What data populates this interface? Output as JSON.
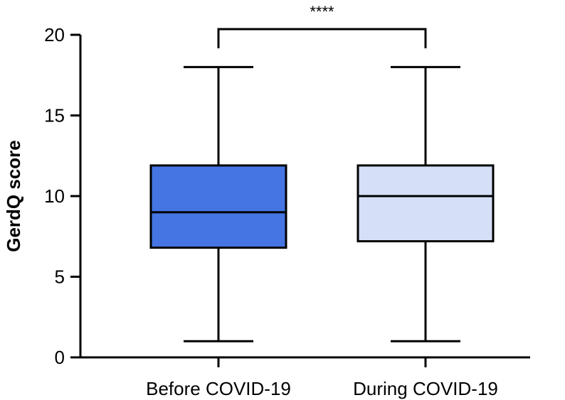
{
  "chart_data": {
    "type": "box",
    "title": "",
    "xlabel": "",
    "ylabel": "GerdQ score",
    "ylim": [
      0,
      20
    ],
    "yticks": [
      0,
      5,
      10,
      15,
      20
    ],
    "grid": false,
    "categories": [
      "Before COVID-19",
      "During COVID-19"
    ],
    "boxes": [
      {
        "category": "Before COVID-19",
        "min": 1,
        "q1": 6.8,
        "median": 9,
        "q3": 11.9,
        "max": 18,
        "color": "#4475e2"
      },
      {
        "category": "During COVID-19",
        "min": 1,
        "q1": 7.2,
        "median": 10,
        "q3": 11.9,
        "max": 18,
        "color": "#d5e0f8"
      }
    ],
    "significance": {
      "label": "****",
      "between": [
        "Before COVID-19",
        "During COVID-19"
      ]
    },
    "axis_color": "#000000"
  }
}
